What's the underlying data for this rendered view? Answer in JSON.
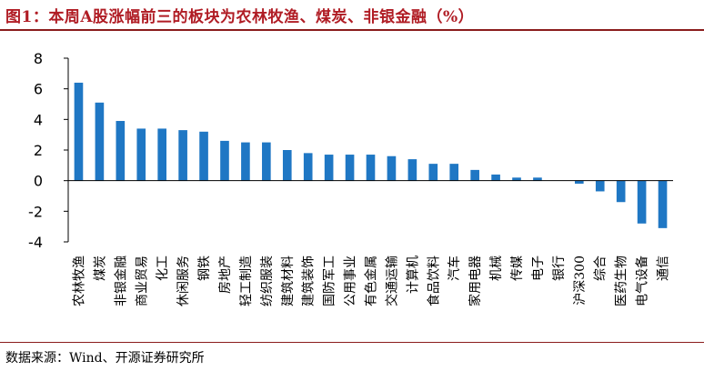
{
  "title": "图1：本周A股涨幅前三的板块为农林牧渔、煤炭、非银金融（%）",
  "source": "数据来源：Wind、开源证券研究所",
  "colors": {
    "bar": "#1f77c4",
    "title": "#b01c24",
    "rule": "#8a1c1c"
  },
  "chart_data": {
    "type": "bar",
    "title": "图1：本周A股涨幅前三的板块为农林牧渔、煤炭、非银金融（%）",
    "xlabel": "",
    "ylabel": "",
    "ylim": [
      -4,
      8
    ],
    "yticks": [
      -4,
      -2,
      0,
      2,
      4,
      6,
      8
    ],
    "grid": false,
    "categories": [
      "农林牧渔",
      "煤炭",
      "非银金融",
      "商业贸易",
      "化工",
      "休闲服务",
      "钢铁",
      "房地产",
      "轻工制造",
      "纺织服装",
      "建筑材料",
      "建筑装饰",
      "国防军工",
      "公用事业",
      "有色金属",
      "交通运输",
      "计算机",
      "食品饮料",
      "汽车",
      "家用电器",
      "机械",
      "传媒",
      "电子",
      "银行",
      "沪深300",
      "综合",
      "医药生物",
      "电气设备",
      "通信"
    ],
    "values": [
      6.4,
      5.1,
      3.9,
      3.4,
      3.4,
      3.3,
      3.2,
      2.6,
      2.5,
      2.5,
      2.0,
      1.8,
      1.7,
      1.7,
      1.7,
      1.6,
      1.4,
      1.1,
      1.1,
      0.7,
      0.4,
      0.2,
      0.2,
      0.0,
      -0.2,
      -0.7,
      -1.4,
      -2.8,
      -3.1
    ]
  }
}
